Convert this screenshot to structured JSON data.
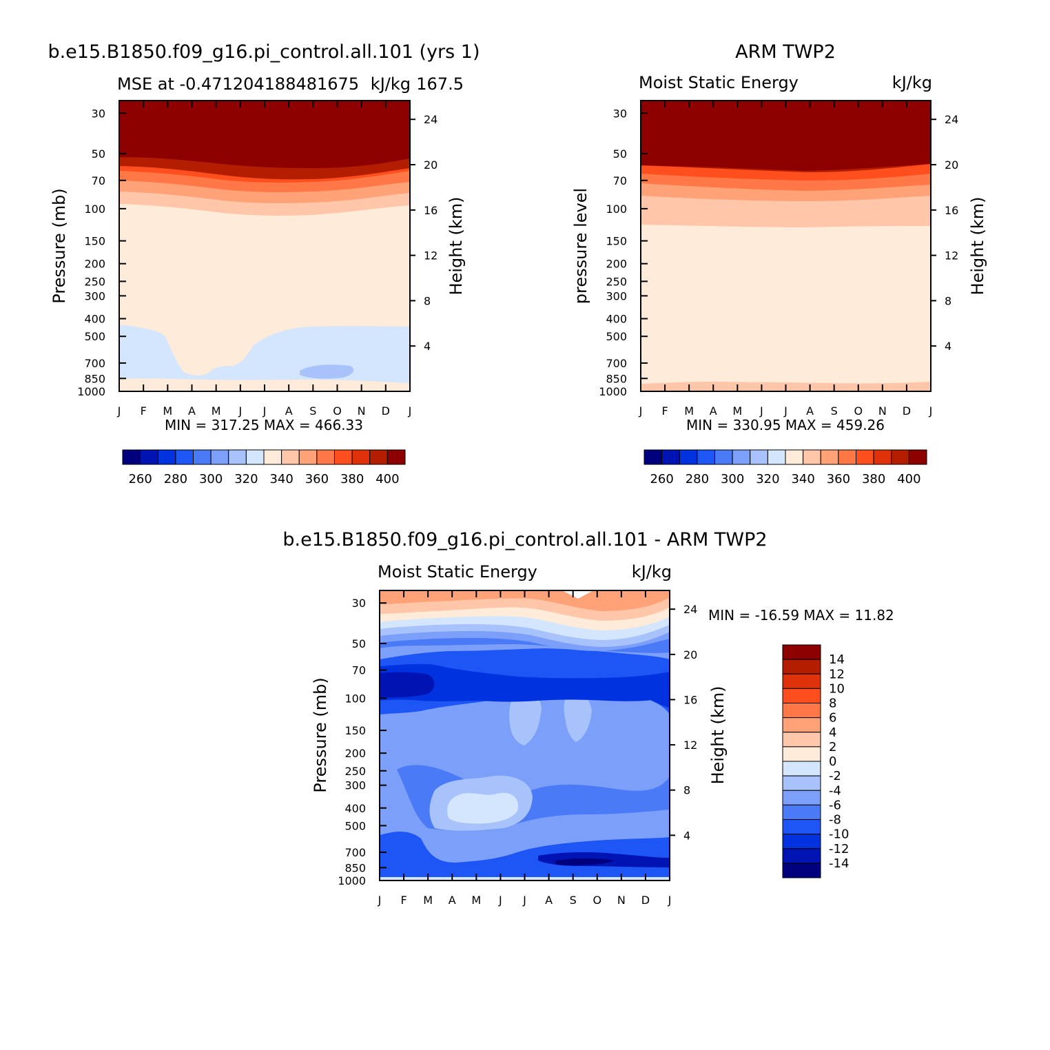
{
  "colors": {
    "mse_levels": [
      "#00007f",
      "#0014b4",
      "#0032e0",
      "#1e55f5",
      "#4a7af5",
      "#7ca0fa",
      "#a8c3fc",
      "#d4e6fd",
      "#ffebd9",
      "#ffc6aa",
      "#ffa278",
      "#ff7846",
      "#ff4f1e",
      "#e0320a",
      "#b41e00",
      "#8c0000"
    ],
    "diff_levels": [
      "#00007f",
      "#0014b4",
      "#0032e0",
      "#1e55f5",
      "#4a7af5",
      "#7ca0fa",
      "#a8c3fc",
      "#d4e6fd",
      "#ffebd9",
      "#ffc6aa",
      "#ffa278",
      "#ff7846",
      "#ff4f1e",
      "#e0320a",
      "#b41e00",
      "#8c0000"
    ]
  },
  "months": [
    "J",
    "F",
    "M",
    "A",
    "M",
    "J",
    "J",
    "A",
    "S",
    "O",
    "N",
    "D",
    "J"
  ],
  "pressure_ticks": [
    "30",
    "50",
    "70",
    "100",
    "150",
    "200",
    "250",
    "300",
    "400",
    "500",
    "700",
    "850",
    "1000"
  ],
  "height_ticks": [
    "24",
    "20",
    "16",
    "12",
    "8",
    "4"
  ],
  "panels": {
    "model": {
      "main_title": "b.e15.B1850.f09_g16.pi_control.all.101 (yrs 1)",
      "subtitle_left": "MSE at -0.471204188481675",
      "subtitle_right": "kJ/kg",
      "subtitle_extra": "167.5",
      "ylabel": "Pressure (mb)",
      "ylabel_right": "Height (km)",
      "minmax": "MIN = 317.25 MAX = 466.33"
    },
    "obs": {
      "main_title": "ARM TWP2",
      "subtitle_left": "Moist Static Energy",
      "subtitle_right": "kJ/kg",
      "ylabel": "pressure level",
      "ylabel_right": "Height (km)",
      "minmax": "MIN = 330.95 MAX = 459.26"
    },
    "diff": {
      "main_title": "b.e15.B1850.f09_g16.pi_control.all.101 - ARM TWP2",
      "subtitle_left": "Moist Static Energy",
      "subtitle_right": "kJ/kg",
      "ylabel": "Pressure (mb)",
      "ylabel_right": "Height (km)",
      "minmax": "MIN = -16.59 MAX =  11.82"
    }
  },
  "mse_colorbar_labels": [
    "260",
    "280",
    "300",
    "320",
    "340",
    "360",
    "380",
    "400"
  ],
  "diff_colorbar_labels": [
    "14",
    "12",
    "10",
    "8",
    "6",
    "4",
    "2",
    "0",
    "-2",
    "-4",
    "-6",
    "-8",
    "-10",
    "-12",
    "-14"
  ],
  "chart_data": [
    {
      "type": "heatmap",
      "title": "b.e15.B1850.f09_g16.pi_control.all.101 (yrs 1)",
      "subtitle": "MSE at -0.471204188481675 167.5",
      "units": "kJ/kg",
      "xlabel": "",
      "ylabel": "Pressure (mb)",
      "ylabel_right": "Height (km)",
      "x": [
        "J",
        "F",
        "M",
        "A",
        "M",
        "J",
        "J",
        "A",
        "S",
        "O",
        "N",
        "D",
        "J"
      ],
      "y_pressure_mb": [
        30,
        50,
        70,
        100,
        150,
        200,
        250,
        300,
        400,
        500,
        700,
        850,
        1000
      ],
      "min": 317.25,
      "max": 466.33,
      "contour_levels": [
        260,
        270,
        280,
        290,
        300,
        310,
        320,
        330,
        340,
        350,
        360,
        370,
        380,
        390,
        400
      ]
    },
    {
      "type": "heatmap",
      "title": "ARM TWP2",
      "subtitle": "Moist Static Energy",
      "units": "kJ/kg",
      "ylabel": "pressure level",
      "ylabel_right": "Height (km)",
      "x": [
        "J",
        "F",
        "M",
        "A",
        "M",
        "J",
        "J",
        "A",
        "S",
        "O",
        "N",
        "D",
        "J"
      ],
      "y_pressure_mb": [
        30,
        50,
        70,
        100,
        150,
        200,
        250,
        300,
        400,
        500,
        700,
        850,
        1000
      ],
      "min": 330.95,
      "max": 459.26,
      "contour_levels": [
        260,
        270,
        280,
        290,
        300,
        310,
        320,
        330,
        340,
        350,
        360,
        370,
        380,
        390,
        400
      ]
    },
    {
      "type": "heatmap",
      "title": "b.e15.B1850.f09_g16.pi_control.all.101 - ARM TWP2",
      "subtitle": "Moist Static Energy",
      "units": "kJ/kg",
      "ylabel": "Pressure (mb)",
      "ylabel_right": "Height (km)",
      "x": [
        "J",
        "F",
        "M",
        "A",
        "M",
        "J",
        "J",
        "A",
        "S",
        "O",
        "N",
        "D",
        "J"
      ],
      "y_pressure_mb": [
        30,
        50,
        70,
        100,
        150,
        200,
        250,
        300,
        400,
        500,
        700,
        850,
        1000
      ],
      "min": -16.59,
      "max": 11.82,
      "contour_levels": [
        -14,
        -12,
        -10,
        -8,
        -6,
        -4,
        -2,
        0,
        2,
        4,
        6,
        8,
        10,
        12,
        14
      ]
    }
  ]
}
